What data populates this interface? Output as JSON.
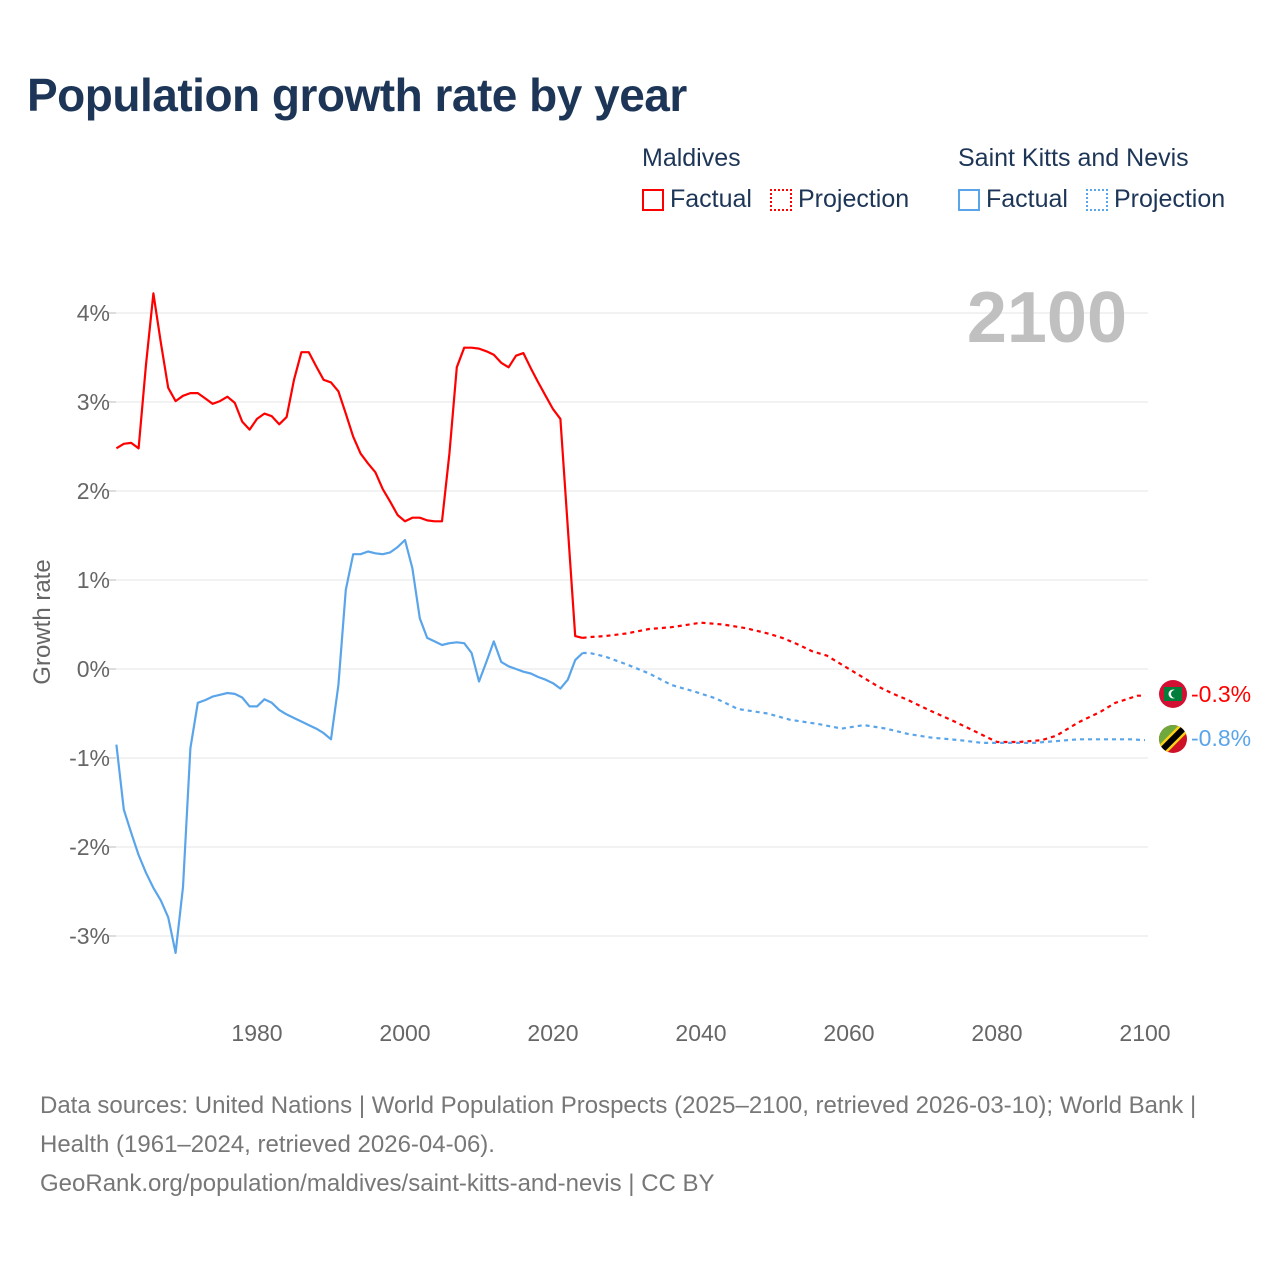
{
  "title": "Population growth rate by year",
  "legend": {
    "groups": [
      {
        "name": "Maldives",
        "factual": "Factual",
        "projection": "Projection",
        "color": "#ff0000"
      },
      {
        "name": "Saint Kitts and Nevis",
        "factual": "Factual",
        "projection": "Projection",
        "color": "#5aa5ea"
      }
    ]
  },
  "year_label": "2100",
  "end_labels": {
    "maldives": "-0.3%",
    "skn": "-0.8%"
  },
  "footer": {
    "line1": "Data sources: United Nations | World Population Prospects (2025–2100, retrieved 2026-03-10); World Bank | Health (1961–2024, retrieved 2026-04-06).",
    "line2": "GeoRank.org/population/maldives/saint-kitts-and-nevis | CC BY"
  },
  "chart_data": {
    "type": "line",
    "title": "Population growth rate by year",
    "xlabel": "",
    "ylabel": "Growth rate",
    "xlim": [
      1961,
      2100
    ],
    "ylim": [
      -3.6,
      4.6
    ],
    "xticks": [
      1980,
      2000,
      2020,
      2040,
      2060,
      2080,
      2100
    ],
    "xtick_labels": [
      "1980",
      "2000",
      "2020",
      "2040",
      "2060",
      "2080",
      "2100"
    ],
    "yticks": [
      4,
      3,
      2,
      1,
      0,
      -1,
      -2,
      -3
    ],
    "ytick_labels": [
      "4%",
      "3%",
      "2%",
      "1%",
      "0%",
      "-1%",
      "-2%",
      "-3%"
    ],
    "grid": true,
    "series": [
      {
        "name": "Maldives Factual",
        "color": "#ff0000",
        "style": "solid",
        "x": [
          1961,
          1962,
          1963,
          1964,
          1965,
          1966,
          1967,
          1968,
          1969,
          1970,
          1971,
          1972,
          1973,
          1974,
          1975,
          1976,
          1977,
          1978,
          1979,
          1980,
          1981,
          1982,
          1983,
          1984,
          1985,
          1986,
          1987,
          1988,
          1989,
          1990,
          1991,
          1992,
          1993,
          1994,
          1995,
          1996,
          1997,
          1998,
          1999,
          2000,
          2001,
          2002,
          2003,
          2004,
          2005,
          2006,
          2007,
          2008,
          2009,
          2010,
          2011,
          2012,
          2013,
          2014,
          2015,
          2016,
          2017,
          2018,
          2019,
          2020,
          2021,
          2022,
          2023,
          2024
        ],
        "y": [
          2.48,
          2.53,
          2.54,
          2.48,
          3.42,
          4.22,
          3.67,
          3.16,
          3.01,
          3.07,
          3.1,
          3.1,
          3.04,
          2.98,
          3.01,
          3.06,
          2.99,
          2.78,
          2.69,
          2.81,
          2.87,
          2.84,
          2.75,
          2.83,
          3.25,
          3.56,
          3.56,
          3.4,
          3.25,
          3.22,
          3.12,
          2.87,
          2.61,
          2.42,
          2.31,
          2.21,
          2.02,
          1.88,
          1.73,
          1.66,
          1.7,
          1.7,
          1.67,
          1.66,
          1.66,
          2.42,
          3.39,
          3.61,
          3.61,
          3.6,
          3.57,
          3.53,
          3.44,
          3.39,
          3.52,
          3.55,
          3.38,
          3.22,
          3.07,
          2.92,
          2.81,
          1.59,
          0.37,
          0.35
        ]
      },
      {
        "name": "Maldives Projection",
        "color": "#ff0000",
        "style": "dotted",
        "x": [
          2024,
          2025,
          2027,
          2030,
          2033,
          2036,
          2040,
          2043,
          2046,
          2049,
          2051,
          2053,
          2055,
          2057,
          2060,
          2062,
          2064,
          2066,
          2068,
          2071,
          2074,
          2077,
          2080,
          2083,
          2086,
          2088,
          2091,
          2094,
          2096,
          2099,
          2100
        ],
        "y": [
          0.35,
          0.36,
          0.37,
          0.4,
          0.45,
          0.47,
          0.52,
          0.5,
          0.46,
          0.4,
          0.35,
          0.28,
          0.2,
          0.15,
          0.0,
          -0.1,
          -0.2,
          -0.28,
          -0.35,
          -0.47,
          -0.58,
          -0.7,
          -0.82,
          -0.82,
          -0.8,
          -0.75,
          -0.6,
          -0.48,
          -0.38,
          -0.3,
          -0.3
        ]
      },
      {
        "name": "Saint Kitts and Nevis Factual",
        "color": "#5aa5ea",
        "style": "solid",
        "x": [
          1961,
          1962,
          1963,
          1964,
          1965,
          1966,
          1967,
          1968,
          1969,
          1970,
          1971,
          1972,
          1973,
          1974,
          1975,
          1976,
          1977,
          1978,
          1979,
          1980,
          1981,
          1982,
          1983,
          1984,
          1985,
          1986,
          1987,
          1988,
          1989,
          1990,
          1991,
          1992,
          1993,
          1994,
          1995,
          1996,
          1997,
          1998,
          1999,
          2000,
          2001,
          2002,
          2003,
          2004,
          2005,
          2006,
          2007,
          2008,
          2009,
          2010,
          2011,
          2012,
          2013,
          2014,
          2015,
          2016,
          2017,
          2018,
          2019,
          2020,
          2021,
          2022,
          2023,
          2024
        ],
        "y": [
          -0.85,
          -1.58,
          -1.84,
          -2.09,
          -2.29,
          -2.46,
          -2.6,
          -2.79,
          -3.19,
          -2.45,
          -0.89,
          -0.38,
          -0.35,
          -0.31,
          -0.29,
          -0.27,
          -0.28,
          -0.32,
          -0.42,
          -0.42,
          -0.34,
          -0.38,
          -0.46,
          -0.51,
          -0.55,
          -0.59,
          -0.63,
          -0.67,
          -0.72,
          -0.79,
          -0.18,
          0.89,
          1.29,
          1.29,
          1.32,
          1.3,
          1.29,
          1.31,
          1.37,
          1.45,
          1.13,
          0.57,
          0.35,
          0.31,
          0.27,
          0.29,
          0.3,
          0.29,
          0.18,
          -0.14,
          0.08,
          0.31,
          0.08,
          0.03,
          0.0,
          -0.03,
          -0.05,
          -0.09,
          -0.12,
          -0.16,
          -0.22,
          -0.12,
          0.1,
          0.18
        ]
      },
      {
        "name": "Saint Kitts and Nevis Projection",
        "color": "#5aa5ea",
        "style": "dotted",
        "x": [
          2024,
          2025,
          2027,
          2030,
          2033,
          2036,
          2039,
          2042,
          2045,
          2049,
          2052,
          2056,
          2059,
          2062,
          2065,
          2068,
          2071,
          2075,
          2078,
          2082,
          2085,
          2088,
          2091,
          2095,
          2098,
          2100
        ],
        "y": [
          0.18,
          0.18,
          0.14,
          0.05,
          -0.05,
          -0.18,
          -0.25,
          -0.33,
          -0.45,
          -0.5,
          -0.57,
          -0.62,
          -0.67,
          -0.63,
          -0.67,
          -0.73,
          -0.77,
          -0.8,
          -0.83,
          -0.83,
          -0.83,
          -0.81,
          -0.79,
          -0.79,
          -0.79,
          -0.8
        ]
      }
    ]
  }
}
